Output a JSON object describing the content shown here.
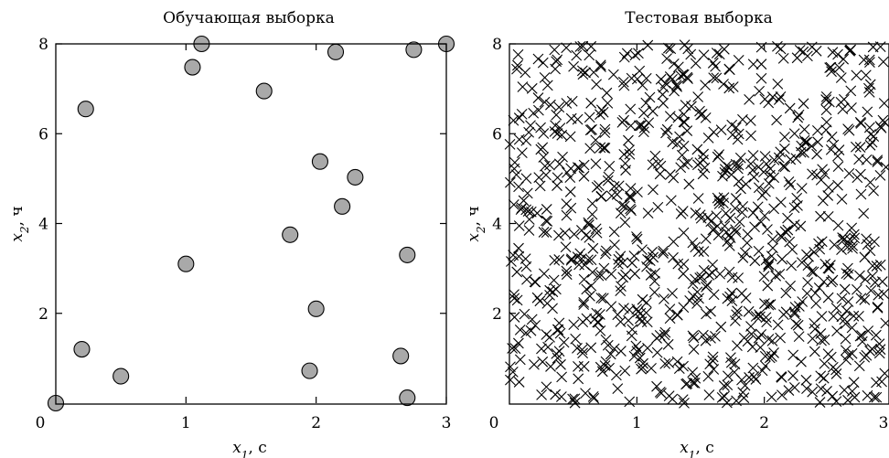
{
  "chart_data": [
    {
      "type": "scatter",
      "title": "Обучающая выборка",
      "xlabel": "x1, с",
      "ylabel": "x2, ч",
      "xlim": [
        0,
        3
      ],
      "ylim": [
        0,
        8
      ],
      "x_ticks": [
        "0",
        "1",
        "2",
        "3"
      ],
      "y_ticks": [
        "2",
        "4",
        "6",
        "8"
      ],
      "marker": "circle",
      "marker_color": "#a9a9a9",
      "points": [
        {
          "x": 0.0,
          "y": 0.0
        },
        {
          "x": 0.2,
          "y": 1.2
        },
        {
          "x": 0.23,
          "y": 6.55
        },
        {
          "x": 0.5,
          "y": 0.6
        },
        {
          "x": 1.0,
          "y": 3.1
        },
        {
          "x": 1.05,
          "y": 7.48
        },
        {
          "x": 1.12,
          "y": 8.0
        },
        {
          "x": 1.6,
          "y": 6.95
        },
        {
          "x": 1.8,
          "y": 3.75
        },
        {
          "x": 1.95,
          "y": 0.72
        },
        {
          "x": 2.0,
          "y": 2.1
        },
        {
          "x": 2.03,
          "y": 5.38
        },
        {
          "x": 2.15,
          "y": 7.82
        },
        {
          "x": 2.2,
          "y": 4.38
        },
        {
          "x": 2.3,
          "y": 5.03
        },
        {
          "x": 2.65,
          "y": 1.05
        },
        {
          "x": 2.7,
          "y": 3.3
        },
        {
          "x": 2.7,
          "y": 0.12
        },
        {
          "x": 2.75,
          "y": 7.87
        },
        {
          "x": 3.0,
          "y": 8.0
        }
      ]
    },
    {
      "type": "scatter",
      "title": "Тестовая выборка",
      "xlabel": "x1, с",
      "ylabel": "x2, ч",
      "xlim": [
        0,
        3
      ],
      "ylim": [
        0,
        8
      ],
      "x_ticks": [
        "0",
        "1",
        "2",
        "3"
      ],
      "y_ticks": [
        "2",
        "4",
        "6",
        "8"
      ],
      "marker": "x",
      "marker_color": "#000000",
      "point_count": 1000,
      "distribution": "uniform over [0, 3] × [0, 8]"
    }
  ]
}
